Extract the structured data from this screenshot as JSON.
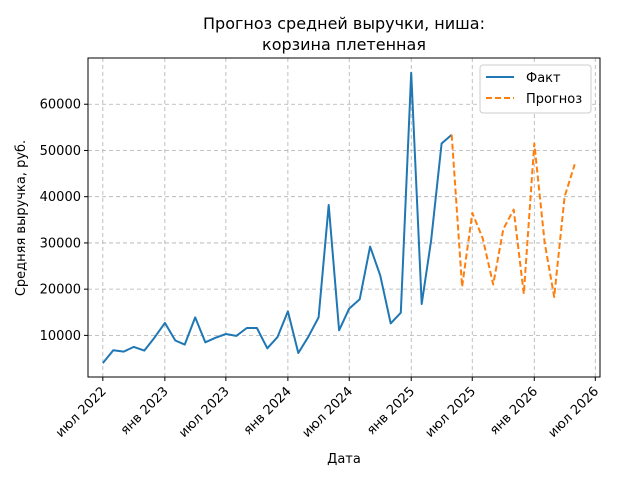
{
  "chart_data": {
    "type": "line",
    "title_lines": [
      "Прогноз средней выручки, ниша:",
      "корзина плетенная"
    ],
    "xlabel": "Дата",
    "ylabel": "Средняя выручка, руб.",
    "x_ticks": [
      {
        "date": "2022-07-01",
        "label": "июл 2022"
      },
      {
        "date": "2023-01-01",
        "label": "янв 2023"
      },
      {
        "date": "2023-07-01",
        "label": "июл 2023"
      },
      {
        "date": "2024-01-01",
        "label": "янв 2024"
      },
      {
        "date": "2024-07-01",
        "label": "июл 2024"
      },
      {
        "date": "2025-01-01",
        "label": "янв 2025"
      },
      {
        "date": "2025-07-01",
        "label": "июл 2025"
      },
      {
        "date": "2026-01-01",
        "label": "янв 2026"
      },
      {
        "date": "2026-07-01",
        "label": "июл 2026"
      }
    ],
    "y_ticks": [
      10000,
      20000,
      30000,
      40000,
      50000,
      60000
    ],
    "xlim": [
      "2022-05-18",
      "2026-07-15"
    ],
    "ylim": [
      1000,
      70000
    ],
    "grid": true,
    "legend_position": "top-right",
    "series": [
      {
        "name": "Факт",
        "color": "#1f77b4",
        "dash": "solid",
        "points": [
          [
            "2022-07-01",
            4000
          ],
          [
            "2022-08-01",
            6800
          ],
          [
            "2022-09-01",
            6500
          ],
          [
            "2022-10-01",
            7500
          ],
          [
            "2022-11-01",
            6700
          ],
          [
            "2022-12-01",
            9500
          ],
          [
            "2023-01-01",
            12700
          ],
          [
            "2023-02-01",
            8900
          ],
          [
            "2023-03-01",
            8000
          ],
          [
            "2023-04-01",
            13900
          ],
          [
            "2023-05-01",
            8500
          ],
          [
            "2023-06-01",
            9500
          ],
          [
            "2023-07-01",
            10300
          ],
          [
            "2023-08-01",
            9900
          ],
          [
            "2023-09-01",
            11600
          ],
          [
            "2023-10-01",
            11600
          ],
          [
            "2023-11-01",
            7200
          ],
          [
            "2023-12-01",
            9600
          ],
          [
            "2024-01-01",
            15200
          ],
          [
            "2024-02-01",
            6200
          ],
          [
            "2024-03-01",
            9600
          ],
          [
            "2024-04-01",
            13900
          ],
          [
            "2024-05-01",
            38200
          ],
          [
            "2024-06-01",
            11100
          ],
          [
            "2024-07-01",
            15800
          ],
          [
            "2024-08-01",
            17800
          ],
          [
            "2024-09-01",
            29200
          ],
          [
            "2024-10-01",
            23000
          ],
          [
            "2024-11-01",
            12600
          ],
          [
            "2024-12-01",
            14900
          ],
          [
            "2025-01-01",
            66800
          ],
          [
            "2025-02-01",
            16800
          ],
          [
            "2025-03-01",
            30500
          ],
          [
            "2025-04-01",
            51500
          ],
          [
            "2025-05-01",
            53400
          ]
        ]
      },
      {
        "name": "Прогноз",
        "color": "#ff7f0e",
        "dash": "dashed",
        "points": [
          [
            "2025-05-01",
            53400
          ],
          [
            "2025-06-01",
            20500
          ],
          [
            "2025-07-01",
            36500
          ],
          [
            "2025-08-01",
            31000
          ],
          [
            "2025-09-01",
            21000
          ],
          [
            "2025-10-01",
            33000
          ],
          [
            "2025-11-01",
            37200
          ],
          [
            "2025-12-01",
            19000
          ],
          [
            "2026-01-01",
            51500
          ],
          [
            "2026-02-01",
            30000
          ],
          [
            "2026-03-01",
            18300
          ],
          [
            "2026-04-01",
            40000
          ],
          [
            "2026-05-01",
            47000
          ]
        ]
      }
    ]
  }
}
